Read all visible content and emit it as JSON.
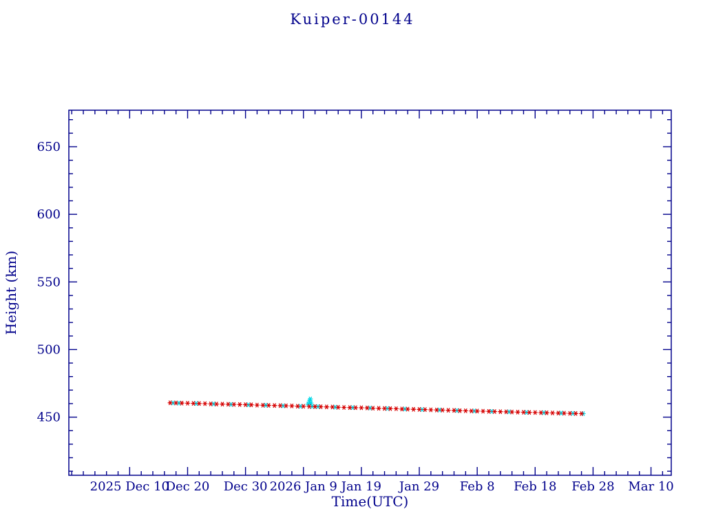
{
  "page": {
    "background": "#ffffff"
  },
  "chart_data": {
    "type": "scatter",
    "title": "Kuiper-00144",
    "xlabel": "Time(UTC)",
    "ylabel": "Height (km)",
    "axis_color": "#00008b",
    "background": "#ffffff",
    "x_unit": "days since 2025 Dec 10",
    "xlim": [
      -10.5,
      93.5
    ],
    "ylim": [
      407,
      677
    ],
    "x_minor_step": 2,
    "y_minor_step": 10,
    "y_ticks": [
      450,
      500,
      550,
      600,
      650
    ],
    "x_ticks": [
      {
        "day": 0,
        "label": "2025 Dec 10"
      },
      {
        "day": 10,
        "label": "Dec 20"
      },
      {
        "day": 20,
        "label": "Dec 30"
      },
      {
        "day": 30,
        "label": "2026 Jan 9"
      },
      {
        "day": 40,
        "label": "Jan 19"
      },
      {
        "day": 50,
        "label": "Jan 29"
      },
      {
        "day": 60,
        "label": "Feb 8"
      },
      {
        "day": 70,
        "label": "Feb 18"
      },
      {
        "day": 80,
        "label": "Feb 28"
      },
      {
        "day": 90,
        "label": "Mar 10"
      }
    ],
    "series": [
      {
        "name": "predicted-height",
        "color": "#00d7e6",
        "marker": "asterisk",
        "points": [
          [
            7.5,
            460.5
          ],
          [
            8.5,
            460.4
          ],
          [
            11.5,
            460.1
          ],
          [
            14.5,
            459.8
          ],
          [
            17.5,
            459.4
          ],
          [
            20.5,
            459.1
          ],
          [
            23.5,
            458.8
          ],
          [
            26.5,
            458.4
          ],
          [
            29.5,
            458.0
          ],
          [
            30.8,
            459.6
          ],
          [
            31.0,
            461.2
          ],
          [
            31.1,
            462.4
          ],
          [
            31.2,
            463.5
          ],
          [
            31.3,
            460.4
          ],
          [
            31.5,
            457.9
          ],
          [
            32.5,
            457.8
          ],
          [
            35.5,
            457.4
          ],
          [
            38.5,
            457.1
          ],
          [
            41.5,
            456.7
          ],
          [
            44.5,
            456.4
          ],
          [
            47.5,
            456.0
          ],
          [
            50.5,
            455.6
          ],
          [
            53.5,
            455.3
          ],
          [
            56.5,
            454.9
          ],
          [
            59.5,
            454.6
          ],
          [
            62.5,
            454.2
          ],
          [
            65.5,
            453.9
          ],
          [
            68.5,
            453.5
          ],
          [
            71.5,
            453.3
          ],
          [
            74.5,
            453.0
          ],
          [
            76.5,
            452.8
          ],
          [
            78.3,
            452.6
          ]
        ]
      },
      {
        "name": "observed-height",
        "color": "#d60000",
        "marker": "asterisk",
        "points": [
          [
            7,
            460.6
          ],
          [
            8,
            460.5
          ],
          [
            9,
            460.4
          ],
          [
            10,
            460.3
          ],
          [
            11,
            460.2
          ],
          [
            12,
            460.1
          ],
          [
            13,
            460.0
          ],
          [
            14,
            459.8
          ],
          [
            15,
            459.7
          ],
          [
            16,
            459.6
          ],
          [
            17,
            459.5
          ],
          [
            18,
            459.4
          ],
          [
            19,
            459.3
          ],
          [
            20,
            459.2
          ],
          [
            21,
            459.1
          ],
          [
            22,
            458.9
          ],
          [
            23,
            458.8
          ],
          [
            24,
            458.7
          ],
          [
            25,
            458.6
          ],
          [
            26,
            458.5
          ],
          [
            27,
            458.4
          ],
          [
            28,
            458.3
          ],
          [
            29,
            458.1
          ],
          [
            30,
            458.0
          ],
          [
            31,
            457.9
          ],
          [
            32,
            457.8
          ],
          [
            33,
            457.7
          ],
          [
            34,
            457.6
          ],
          [
            35,
            457.5
          ],
          [
            36,
            457.3
          ],
          [
            37,
            457.2
          ],
          [
            38,
            457.1
          ],
          [
            39,
            457.0
          ],
          [
            40,
            456.9
          ],
          [
            41,
            456.8
          ],
          [
            42,
            456.6
          ],
          [
            43,
            456.5
          ],
          [
            44,
            456.4
          ],
          [
            45,
            456.3
          ],
          [
            46,
            456.2
          ],
          [
            47,
            456.0
          ],
          [
            48,
            455.9
          ],
          [
            49,
            455.8
          ],
          [
            50,
            455.7
          ],
          [
            51,
            455.6
          ],
          [
            52,
            455.4
          ],
          [
            53,
            455.3
          ],
          [
            54,
            455.2
          ],
          [
            55,
            455.1
          ],
          [
            56,
            455.0
          ],
          [
            57,
            454.8
          ],
          [
            58,
            454.7
          ],
          [
            59,
            454.6
          ],
          [
            60,
            454.5
          ],
          [
            61,
            454.4
          ],
          [
            62,
            454.3
          ],
          [
            63,
            454.1
          ],
          [
            64,
            454.0
          ],
          [
            65,
            453.9
          ],
          [
            66,
            453.8
          ],
          [
            67,
            453.7
          ],
          [
            68,
            453.6
          ],
          [
            69,
            453.5
          ],
          [
            70,
            453.4
          ],
          [
            71,
            453.3
          ],
          [
            72,
            453.2
          ],
          [
            73,
            453.1
          ],
          [
            74,
            453.0
          ],
          [
            75,
            452.9
          ],
          [
            76,
            452.8
          ],
          [
            77,
            452.7
          ],
          [
            78,
            452.6
          ]
        ]
      }
    ]
  }
}
